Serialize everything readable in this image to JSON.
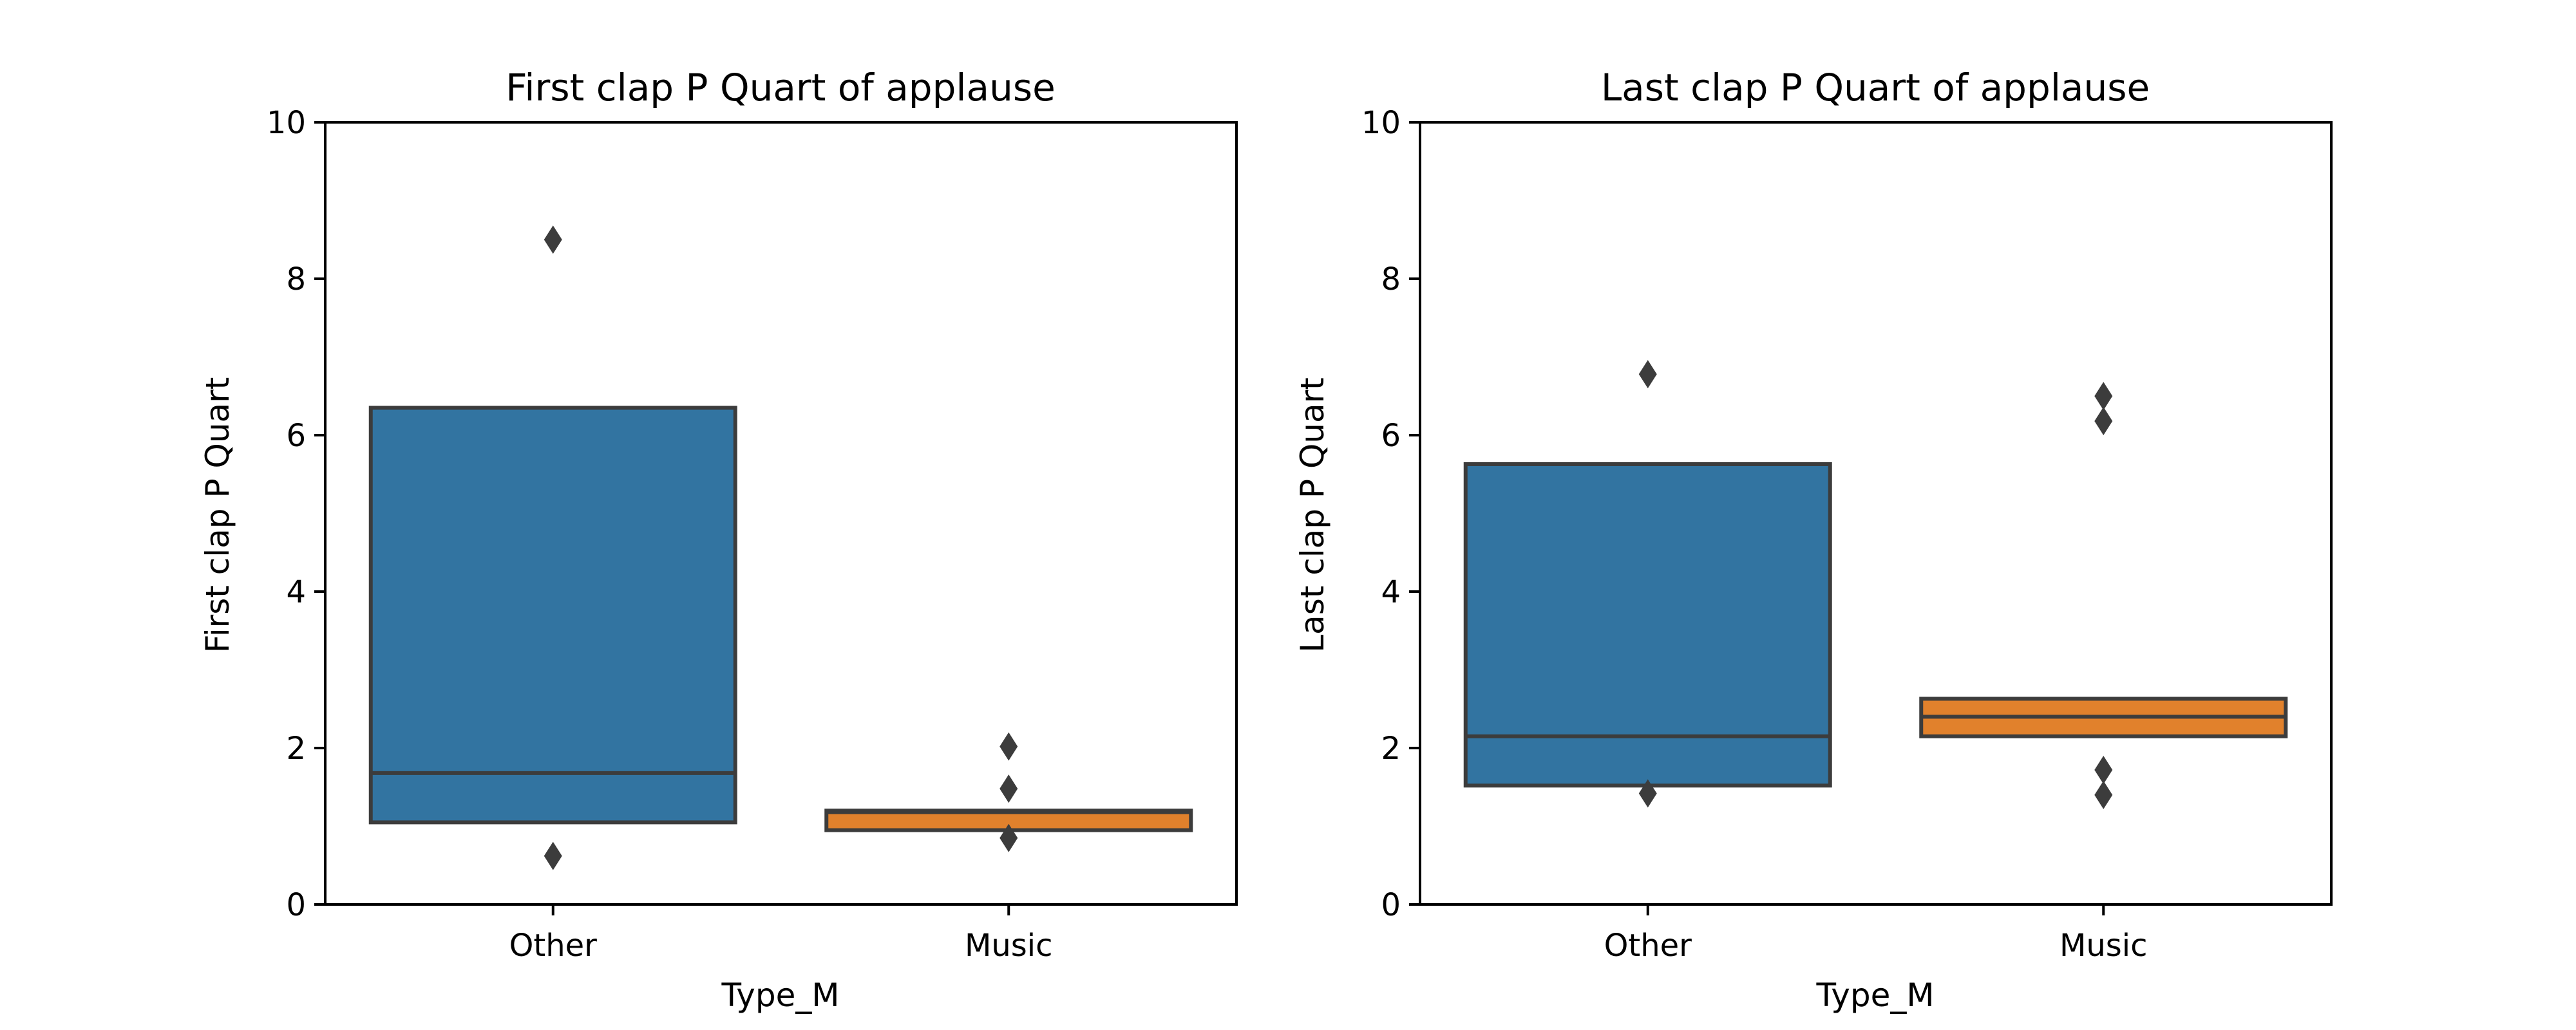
{
  "chart_data": [
    {
      "type": "box",
      "title": "First clap P Quart of applause",
      "xlabel": "Type_M",
      "ylabel": "First clap P Quart",
      "ylim": [
        0,
        10
      ],
      "yticks": [
        0,
        2,
        4,
        6,
        8,
        10
      ],
      "categories": [
        "Other",
        "Music"
      ],
      "grid": false,
      "series": [
        {
          "category": "Other",
          "color": "#3274a1",
          "q1": 1.05,
          "median": 1.68,
          "q3": 6.35,
          "outliers": [
            8.5,
            0.62
          ]
        },
        {
          "category": "Music",
          "color": "#e1812c",
          "q1": 0.95,
          "median": 1.18,
          "q3": 1.2,
          "outliers": [
            2.02,
            1.48,
            0.85
          ]
        }
      ]
    },
    {
      "type": "box",
      "title": "Last clap P Quart of applause",
      "xlabel": "Type_M",
      "ylabel": "Last clap P Quart",
      "ylim": [
        0,
        10
      ],
      "yticks": [
        0,
        2,
        4,
        6,
        8,
        10
      ],
      "categories": [
        "Other",
        "Music"
      ],
      "grid": false,
      "series": [
        {
          "category": "Other",
          "color": "#3274a1",
          "q1": 1.52,
          "median": 2.15,
          "q3": 5.63,
          "outliers": [
            6.78,
            1.42
          ]
        },
        {
          "category": "Music",
          "color": "#e1812c",
          "q1": 2.15,
          "median": 2.4,
          "q3": 2.63,
          "outliers": [
            6.5,
            6.18,
            1.72,
            1.4
          ]
        }
      ]
    }
  ]
}
